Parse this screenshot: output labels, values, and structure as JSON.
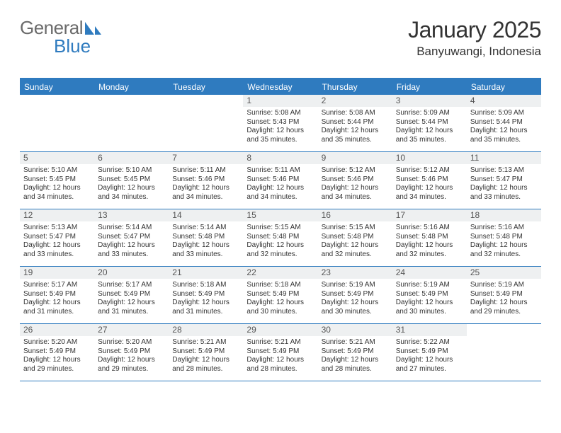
{
  "brand": {
    "part1": "General",
    "part2": "Blue"
  },
  "title": {
    "month": "January 2025",
    "location": "Banyuwangi, Indonesia"
  },
  "colors": {
    "accent": "#2f7bbf",
    "header_text": "#ffffff",
    "daynum_bg": "#eef0f1",
    "text": "#333333",
    "logo_gray": "#6b6b6b"
  },
  "day_headers": [
    "Sunday",
    "Monday",
    "Tuesday",
    "Wednesday",
    "Thursday",
    "Friday",
    "Saturday"
  ],
  "weeks": [
    [
      {
        "n": "",
        "empty": true
      },
      {
        "n": "",
        "empty": true
      },
      {
        "n": "",
        "empty": true
      },
      {
        "n": "1",
        "sr": "5:08 AM",
        "ss": "5:43 PM",
        "dl": "12 hours and 35 minutes."
      },
      {
        "n": "2",
        "sr": "5:08 AM",
        "ss": "5:44 PM",
        "dl": "12 hours and 35 minutes."
      },
      {
        "n": "3",
        "sr": "5:09 AM",
        "ss": "5:44 PM",
        "dl": "12 hours and 35 minutes."
      },
      {
        "n": "4",
        "sr": "5:09 AM",
        "ss": "5:44 PM",
        "dl": "12 hours and 35 minutes."
      }
    ],
    [
      {
        "n": "5",
        "sr": "5:10 AM",
        "ss": "5:45 PM",
        "dl": "12 hours and 34 minutes."
      },
      {
        "n": "6",
        "sr": "5:10 AM",
        "ss": "5:45 PM",
        "dl": "12 hours and 34 minutes."
      },
      {
        "n": "7",
        "sr": "5:11 AM",
        "ss": "5:46 PM",
        "dl": "12 hours and 34 minutes."
      },
      {
        "n": "8",
        "sr": "5:11 AM",
        "ss": "5:46 PM",
        "dl": "12 hours and 34 minutes."
      },
      {
        "n": "9",
        "sr": "5:12 AM",
        "ss": "5:46 PM",
        "dl": "12 hours and 34 minutes."
      },
      {
        "n": "10",
        "sr": "5:12 AM",
        "ss": "5:46 PM",
        "dl": "12 hours and 34 minutes."
      },
      {
        "n": "11",
        "sr": "5:13 AM",
        "ss": "5:47 PM",
        "dl": "12 hours and 33 minutes."
      }
    ],
    [
      {
        "n": "12",
        "sr": "5:13 AM",
        "ss": "5:47 PM",
        "dl": "12 hours and 33 minutes."
      },
      {
        "n": "13",
        "sr": "5:14 AM",
        "ss": "5:47 PM",
        "dl": "12 hours and 33 minutes."
      },
      {
        "n": "14",
        "sr": "5:14 AM",
        "ss": "5:48 PM",
        "dl": "12 hours and 33 minutes."
      },
      {
        "n": "15",
        "sr": "5:15 AM",
        "ss": "5:48 PM",
        "dl": "12 hours and 32 minutes."
      },
      {
        "n": "16",
        "sr": "5:15 AM",
        "ss": "5:48 PM",
        "dl": "12 hours and 32 minutes."
      },
      {
        "n": "17",
        "sr": "5:16 AM",
        "ss": "5:48 PM",
        "dl": "12 hours and 32 minutes."
      },
      {
        "n": "18",
        "sr": "5:16 AM",
        "ss": "5:48 PM",
        "dl": "12 hours and 32 minutes."
      }
    ],
    [
      {
        "n": "19",
        "sr": "5:17 AM",
        "ss": "5:49 PM",
        "dl": "12 hours and 31 minutes."
      },
      {
        "n": "20",
        "sr": "5:17 AM",
        "ss": "5:49 PM",
        "dl": "12 hours and 31 minutes."
      },
      {
        "n": "21",
        "sr": "5:18 AM",
        "ss": "5:49 PM",
        "dl": "12 hours and 31 minutes."
      },
      {
        "n": "22",
        "sr": "5:18 AM",
        "ss": "5:49 PM",
        "dl": "12 hours and 30 minutes."
      },
      {
        "n": "23",
        "sr": "5:19 AM",
        "ss": "5:49 PM",
        "dl": "12 hours and 30 minutes."
      },
      {
        "n": "24",
        "sr": "5:19 AM",
        "ss": "5:49 PM",
        "dl": "12 hours and 30 minutes."
      },
      {
        "n": "25",
        "sr": "5:19 AM",
        "ss": "5:49 PM",
        "dl": "12 hours and 29 minutes."
      }
    ],
    [
      {
        "n": "26",
        "sr": "5:20 AM",
        "ss": "5:49 PM",
        "dl": "12 hours and 29 minutes."
      },
      {
        "n": "27",
        "sr": "5:20 AM",
        "ss": "5:49 PM",
        "dl": "12 hours and 29 minutes."
      },
      {
        "n": "28",
        "sr": "5:21 AM",
        "ss": "5:49 PM",
        "dl": "12 hours and 28 minutes."
      },
      {
        "n": "29",
        "sr": "5:21 AM",
        "ss": "5:49 PM",
        "dl": "12 hours and 28 minutes."
      },
      {
        "n": "30",
        "sr": "5:21 AM",
        "ss": "5:49 PM",
        "dl": "12 hours and 28 minutes."
      },
      {
        "n": "31",
        "sr": "5:22 AM",
        "ss": "5:49 PM",
        "dl": "12 hours and 27 minutes."
      },
      {
        "n": "",
        "empty": true
      }
    ]
  ],
  "labels": {
    "sunrise": "Sunrise:",
    "sunset": "Sunset:",
    "daylight": "Daylight:"
  }
}
